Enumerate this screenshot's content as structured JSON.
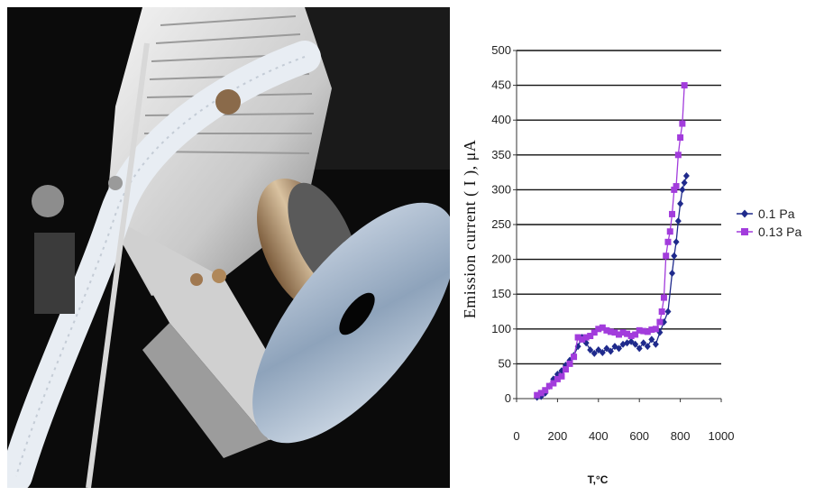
{
  "photo": {
    "description_hidden": ""
  },
  "chart_data": {
    "type": "line",
    "xlabel": "T,°C",
    "ylabel": "Emission current ( I ), μA",
    "xlim": [
      0,
      1000
    ],
    "ylim": [
      0,
      500
    ],
    "xticks": [
      0,
      200,
      400,
      600,
      800,
      1000
    ],
    "yticks": [
      0,
      50,
      100,
      150,
      200,
      250,
      300,
      350,
      400,
      450,
      500
    ],
    "grid": "horizontal",
    "legend_position": "right",
    "series": [
      {
        "name": "0.1 Pa",
        "color": "#1f2a8c",
        "marker": "diamond",
        "x": [
          100,
          120,
          140,
          160,
          180,
          200,
          220,
          240,
          260,
          280,
          300,
          320,
          340,
          360,
          380,
          400,
          420,
          440,
          460,
          480,
          500,
          520,
          540,
          560,
          580,
          600,
          620,
          640,
          660,
          680,
          700,
          720,
          740,
          760,
          770,
          780,
          790,
          800,
          810,
          820,
          830
        ],
        "y": [
          2,
          3,
          8,
          18,
          28,
          35,
          40,
          48,
          55,
          62,
          75,
          88,
          80,
          70,
          65,
          70,
          66,
          72,
          68,
          75,
          72,
          78,
          80,
          82,
          78,
          72,
          80,
          75,
          85,
          78,
          95,
          110,
          125,
          180,
          205,
          225,
          255,
          280,
          300,
          310,
          320
        ]
      },
      {
        "name": "0.13 Pa",
        "color": "#a23cdc",
        "marker": "square",
        "x": [
          100,
          120,
          140,
          160,
          180,
          200,
          220,
          240,
          260,
          280,
          300,
          320,
          340,
          360,
          380,
          400,
          420,
          440,
          460,
          480,
          500,
          520,
          540,
          560,
          580,
          600,
          620,
          640,
          660,
          680,
          700,
          710,
          720,
          730,
          740,
          750,
          760,
          770,
          780,
          790,
          800,
          810,
          820
        ],
        "y": [
          5,
          8,
          12,
          18,
          22,
          28,
          32,
          42,
          50,
          60,
          88,
          85,
          88,
          90,
          95,
          100,
          102,
          98,
          96,
          95,
          92,
          95,
          93,
          90,
          92,
          98,
          97,
          96,
          99,
          100,
          110,
          125,
          145,
          205,
          225,
          240,
          265,
          300,
          305,
          350,
          375,
          395,
          450
        ]
      }
    ]
  }
}
